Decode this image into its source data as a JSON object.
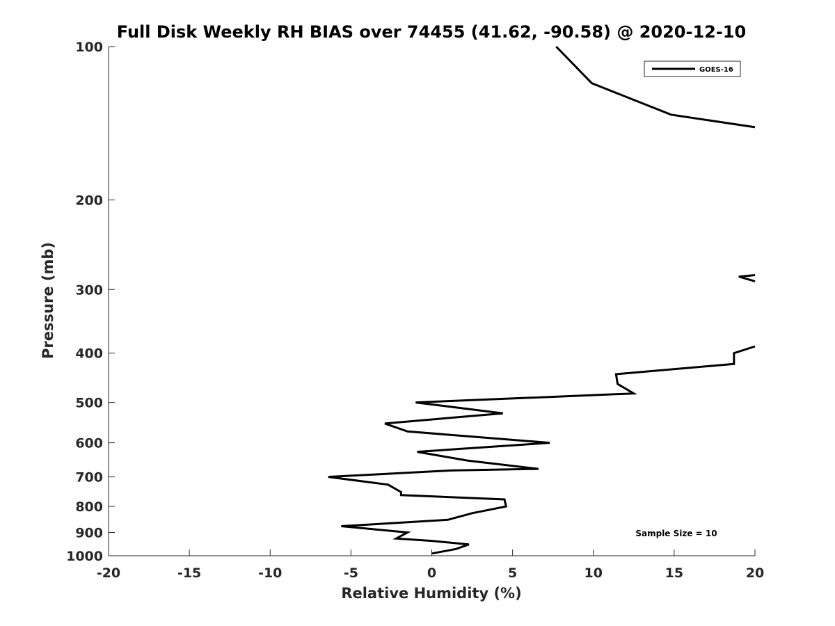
{
  "chart_data": {
    "type": "line",
    "title": "Full Disk Weekly RH BIAS over 74455 (41.62, -90.58) @ 2020-12-10",
    "xlabel": "Relative Humidity (%)",
    "ylabel": "Pressure (mb)",
    "xlim": [
      -20,
      20
    ],
    "ylim": [
      100,
      1000
    ],
    "y_scale": "log",
    "y_reversed": true,
    "x_ticks": [
      "-20",
      "-15",
      "-10",
      "-5",
      "0",
      "5",
      "10",
      "15",
      "20"
    ],
    "y_ticks": [
      "100",
      "200",
      "300",
      "400",
      "500",
      "600",
      "700",
      "800",
      "900",
      "1000"
    ],
    "grid": false,
    "legend_position": "top-right",
    "annotation": "Sample Size = 10",
    "series": [
      {
        "name": "GOES-16",
        "color": "#000000",
        "segments": [
          [
            {
              "x": 7.7,
              "y": 100
            },
            {
              "x": 9.9,
              "y": 118
            },
            {
              "x": 14.8,
              "y": 136
            },
            {
              "x": 20.0,
              "y": 144
            }
          ],
          [
            {
              "x": 20.0,
              "y": 281
            },
            {
              "x": 19.0,
              "y": 283
            },
            {
              "x": 20.0,
              "y": 289
            }
          ],
          [
            {
              "x": 20.0,
              "y": 388
            },
            {
              "x": 18.7,
              "y": 400
            },
            {
              "x": 18.7,
              "y": 420
            },
            {
              "x": 11.4,
              "y": 440
            },
            {
              "x": 11.5,
              "y": 460
            },
            {
              "x": 12.5,
              "y": 480
            },
            {
              "x": -1.0,
              "y": 500
            },
            {
              "x": 4.4,
              "y": 525
            },
            {
              "x": -2.9,
              "y": 550
            },
            {
              "x": -1.5,
              "y": 570
            },
            {
              "x": 7.3,
              "y": 600
            },
            {
              "x": -0.9,
              "y": 625
            },
            {
              "x": 2.2,
              "y": 650
            },
            {
              "x": 6.6,
              "y": 675
            },
            {
              "x": 1.2,
              "y": 680
            },
            {
              "x": -6.4,
              "y": 700
            },
            {
              "x": -2.7,
              "y": 725
            },
            {
              "x": -1.9,
              "y": 750
            },
            {
              "x": -1.9,
              "y": 760
            },
            {
              "x": 4.5,
              "y": 775
            },
            {
              "x": 4.6,
              "y": 800
            },
            {
              "x": 2.5,
              "y": 825
            },
            {
              "x": 1.0,
              "y": 850
            },
            {
              "x": -5.6,
              "y": 875
            },
            {
              "x": -1.5,
              "y": 900
            },
            {
              "x": -2.2,
              "y": 925
            },
            {
              "x": 0.0,
              "y": 935
            },
            {
              "x": 2.3,
              "y": 950
            },
            {
              "x": 1.5,
              "y": 970
            },
            {
              "x": 0.0,
              "y": 990
            }
          ]
        ]
      }
    ]
  }
}
